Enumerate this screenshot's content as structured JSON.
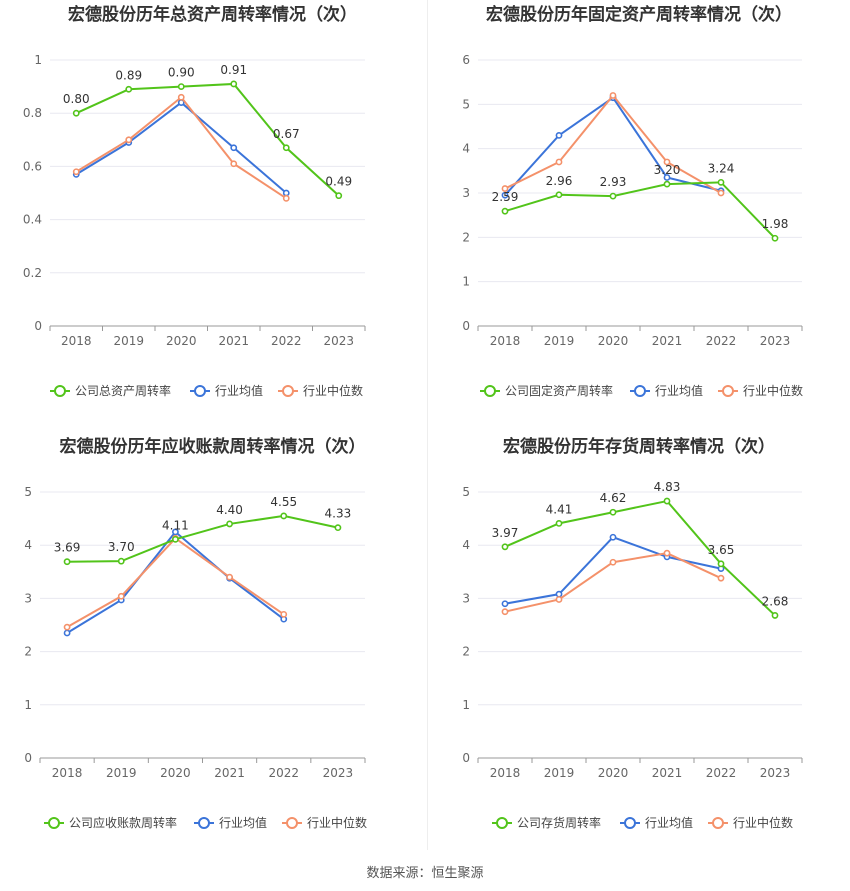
{
  "source_text": "数据来源：恒生聚源",
  "colors": {
    "company": "#52c41a",
    "average": "#3b74d9",
    "median": "#f4916a",
    "grid": "#e8e8f0",
    "axis": "#888888"
  },
  "chart_data": [
    {
      "type": "line",
      "title": "宏德股份历年总资产周转率情况（次）",
      "x": [
        "2018",
        "2019",
        "2020",
        "2021",
        "2022",
        "2023"
      ],
      "ylim": [
        0,
        1
      ],
      "yticks": [
        "0",
        "0.2",
        "0.4",
        "0.6",
        "0.8",
        "1"
      ],
      "grid": true,
      "legend_position": "bottom",
      "series": [
        {
          "name": "公司总资产周转率",
          "color": "#52c41a",
          "values": [
            0.8,
            0.89,
            0.9,
            0.91,
            0.67,
            0.49
          ],
          "labels": [
            "0.80",
            "0.89",
            "0.90",
            "0.91",
            "0.67",
            "0.49"
          ]
        },
        {
          "name": "行业均值",
          "color": "#3b74d9",
          "values": [
            0.57,
            0.69,
            0.84,
            0.67,
            0.5,
            null
          ]
        },
        {
          "name": "行业中位数",
          "color": "#f4916a",
          "values": [
            0.58,
            0.7,
            0.86,
            0.61,
            0.48,
            null
          ]
        }
      ]
    },
    {
      "type": "line",
      "title": "宏德股份历年固定资产周转率情况（次）",
      "x": [
        "2018",
        "2019",
        "2020",
        "2021",
        "2022",
        "2023"
      ],
      "ylim": [
        0,
        6
      ],
      "yticks": [
        "0",
        "1",
        "2",
        "3",
        "4",
        "5",
        "6"
      ],
      "grid": true,
      "legend_position": "bottom",
      "series": [
        {
          "name": "公司固定资产周转率",
          "color": "#52c41a",
          "values": [
            2.59,
            2.96,
            2.93,
            3.2,
            3.24,
            1.98
          ],
          "labels": [
            "2.59",
            "2.96",
            "2.93",
            "3.20",
            "3.24",
            "1.98"
          ]
        },
        {
          "name": "行业均值",
          "color": "#3b74d9",
          "values": [
            2.95,
            4.3,
            5.15,
            3.35,
            3.05,
            null
          ]
        },
        {
          "name": "行业中位数",
          "color": "#f4916a",
          "values": [
            3.1,
            3.7,
            5.2,
            3.7,
            3.0,
            null
          ]
        }
      ]
    },
    {
      "type": "line",
      "title": "宏德股份历年应收账款周转率情况（次）",
      "x": [
        "2018",
        "2019",
        "2020",
        "2021",
        "2022",
        "2023"
      ],
      "ylim": [
        0,
        5
      ],
      "yticks": [
        "0",
        "1",
        "2",
        "3",
        "4",
        "5"
      ],
      "grid": true,
      "legend_position": "bottom",
      "series": [
        {
          "name": "公司应收账款周转率",
          "color": "#52c41a",
          "values": [
            3.69,
            3.7,
            4.11,
            4.4,
            4.55,
            4.33
          ],
          "labels": [
            "3.69",
            "3.70",
            "4.11",
            "4.40",
            "4.55",
            "4.33"
          ]
        },
        {
          "name": "行业均值",
          "color": "#3b74d9",
          "values": [
            2.35,
            2.97,
            4.25,
            3.38,
            2.61,
            null
          ]
        },
        {
          "name": "行业中位数",
          "color": "#f4916a",
          "values": [
            2.46,
            3.04,
            4.13,
            3.4,
            2.7,
            null
          ]
        }
      ]
    },
    {
      "type": "line",
      "title": "宏德股份历年存货周转率情况（次）",
      "x": [
        "2018",
        "2019",
        "2020",
        "2021",
        "2022",
        "2023"
      ],
      "ylim": [
        0,
        5
      ],
      "yticks": [
        "0",
        "1",
        "2",
        "3",
        "4",
        "5"
      ],
      "grid": true,
      "legend_position": "bottom",
      "series": [
        {
          "name": "公司存货周转率",
          "color": "#52c41a",
          "values": [
            3.97,
            4.41,
            4.62,
            4.83,
            3.65,
            2.68
          ],
          "labels": [
            "3.97",
            "4.41",
            "4.62",
            "4.83",
            "3.65",
            "2.68"
          ]
        },
        {
          "name": "行业均值",
          "color": "#3b74d9",
          "values": [
            2.9,
            3.08,
            4.15,
            3.78,
            3.56,
            null
          ]
        },
        {
          "name": "行业中位数",
          "color": "#f4916a",
          "values": [
            2.75,
            2.98,
            3.68,
            3.85,
            3.38,
            null
          ]
        }
      ]
    }
  ]
}
